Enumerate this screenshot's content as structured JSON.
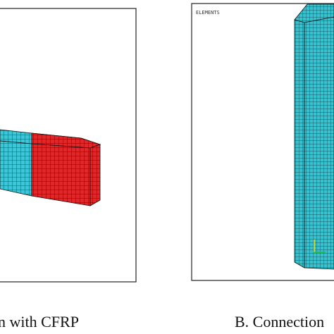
{
  "panels": [
    {
      "caption": "n with CFRP"
    },
    {
      "label": "ELEMENTS",
      "caption": "B. Connection"
    }
  ]
}
